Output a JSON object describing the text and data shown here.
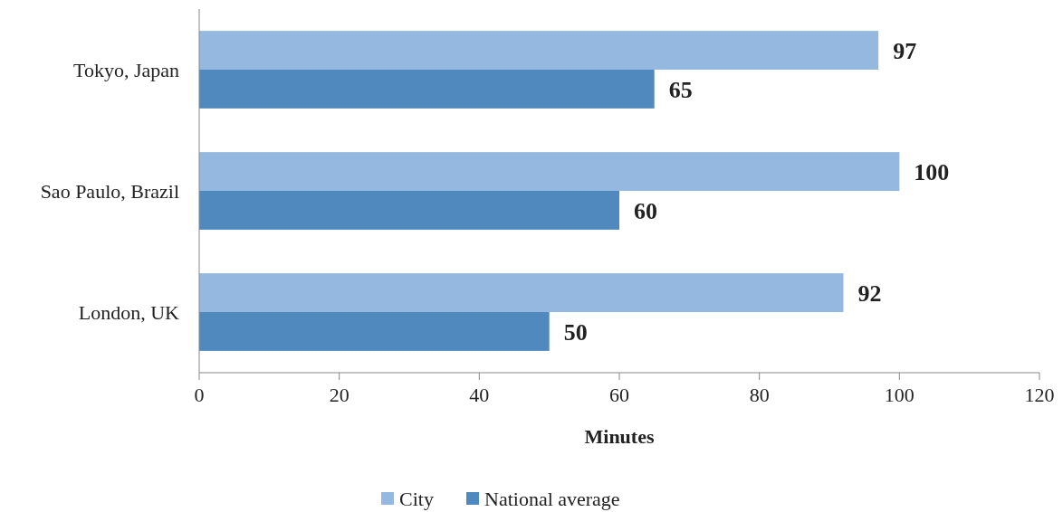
{
  "chart_data": {
    "type": "bar",
    "orientation": "horizontal",
    "xlabel": "Minutes",
    "categories": [
      "Tokyo, Japan",
      "Sao Paulo, Brazil",
      "London, UK"
    ],
    "series": [
      {
        "name": "City",
        "color": "#95b8e0",
        "values": [
          97,
          100,
          92
        ]
      },
      {
        "name": "National average",
        "color": "#4f89bd",
        "values": [
          65,
          60,
          50
        ]
      }
    ],
    "xlim": [
      0,
      120
    ],
    "xticks": [
      0,
      20,
      40,
      60,
      80,
      100,
      120
    ],
    "data_labels": true,
    "legend": "bottom",
    "grid": false
  }
}
